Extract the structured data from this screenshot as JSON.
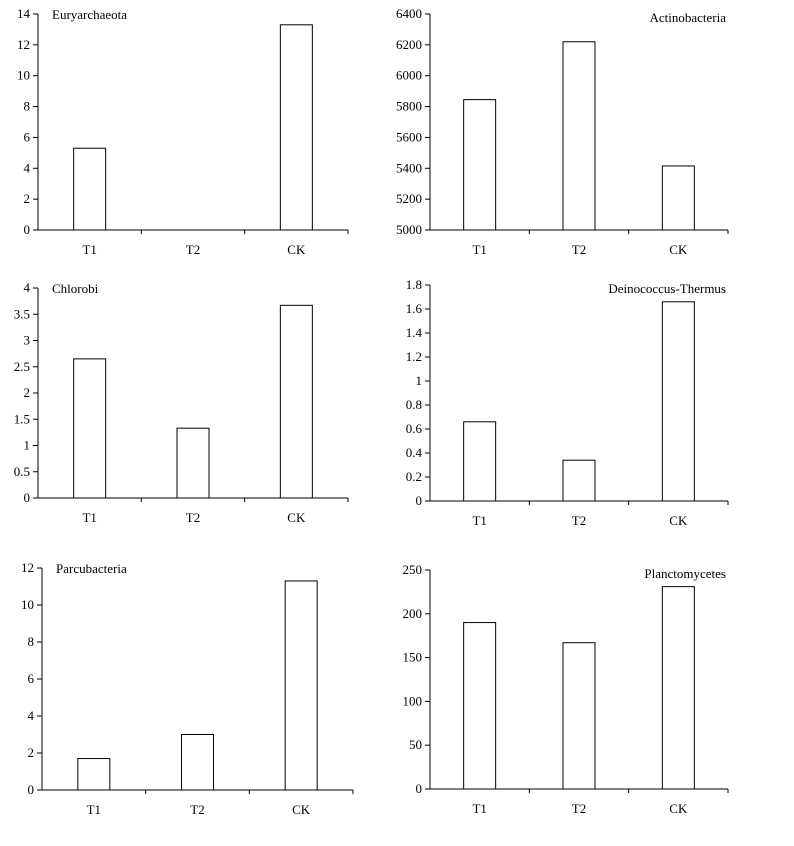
{
  "chart_data": [
    {
      "type": "bar",
      "title": "Euryarchaeota",
      "title_position": "top-left",
      "categories": [
        "T1",
        "T2",
        "CK"
      ],
      "values": [
        5.3,
        0,
        13.3
      ],
      "ylim": [
        0,
        14
      ],
      "yticks": [
        0,
        2,
        4,
        6,
        8,
        10,
        12,
        14
      ],
      "ytick_labels": [
        "0",
        "2",
        "4",
        "6",
        "8",
        "10",
        "12",
        "14"
      ],
      "grid": false,
      "legend": "none"
    },
    {
      "type": "bar",
      "title": "Actinobacteria",
      "title_position": "top-right",
      "categories": [
        "T1",
        "T2",
        "CK"
      ],
      "values": [
        5845,
        6220,
        5415
      ],
      "ylim": [
        5000,
        6400
      ],
      "yticks": [
        5000,
        5200,
        5400,
        5600,
        5800,
        6000,
        6200,
        6400
      ],
      "ytick_labels": [
        "5000",
        "5200",
        "5400",
        "5600",
        "5800",
        "6000",
        "6200",
        "6400"
      ],
      "grid": false,
      "legend": "none"
    },
    {
      "type": "bar",
      "title": "Chlorobi",
      "title_position": "top-left",
      "categories": [
        "T1",
        "T2",
        "CK"
      ],
      "values": [
        2.65,
        1.33,
        3.67
      ],
      "ylim": [
        0,
        4
      ],
      "yticks": [
        0,
        0.5,
        1,
        1.5,
        2,
        2.5,
        3,
        3.5,
        4
      ],
      "ytick_labels": [
        "0",
        "0.5",
        "1",
        "1.5",
        "2",
        "2.5",
        "3",
        "3.5",
        "4"
      ],
      "grid": false,
      "legend": "none"
    },
    {
      "type": "bar",
      "title": "Deinococcus-Thermus",
      "title_position": "top-right",
      "categories": [
        "T1",
        "T2",
        "CK"
      ],
      "values": [
        0.66,
        0.34,
        1.66
      ],
      "ylim": [
        0,
        1.8
      ],
      "yticks": [
        0,
        0.2,
        0.4,
        0.6,
        0.8,
        1,
        1.2,
        1.4,
        1.6,
        1.8
      ],
      "ytick_labels": [
        "0",
        "0.2",
        "0.4",
        "0.6",
        "0.8",
        "1",
        "1.2",
        "1.4",
        "1.6",
        "1.8"
      ],
      "grid": false,
      "legend": "none"
    },
    {
      "type": "bar",
      "title": "Parcubacteria",
      "title_position": "top-left",
      "categories": [
        "T1",
        "T2",
        "CK"
      ],
      "values": [
        1.7,
        3.0,
        11.3
      ],
      "ylim": [
        0,
        12
      ],
      "yticks": [
        0,
        2,
        4,
        6,
        8,
        10,
        12
      ],
      "ytick_labels": [
        "0",
        "2",
        "4",
        "6",
        "8",
        "10",
        "12"
      ],
      "grid": false,
      "legend": "none"
    },
    {
      "type": "bar",
      "title": "Planctomycetes",
      "title_position": "top-right",
      "categories": [
        "T1",
        "T2",
        "CK"
      ],
      "values": [
        190,
        167,
        231
      ],
      "ylim": [
        0,
        250
      ],
      "yticks": [
        0,
        50,
        100,
        150,
        200,
        250
      ],
      "ytick_labels": [
        "0",
        "50",
        "100",
        "150",
        "200",
        "250"
      ],
      "grid": false,
      "legend": "none"
    }
  ]
}
